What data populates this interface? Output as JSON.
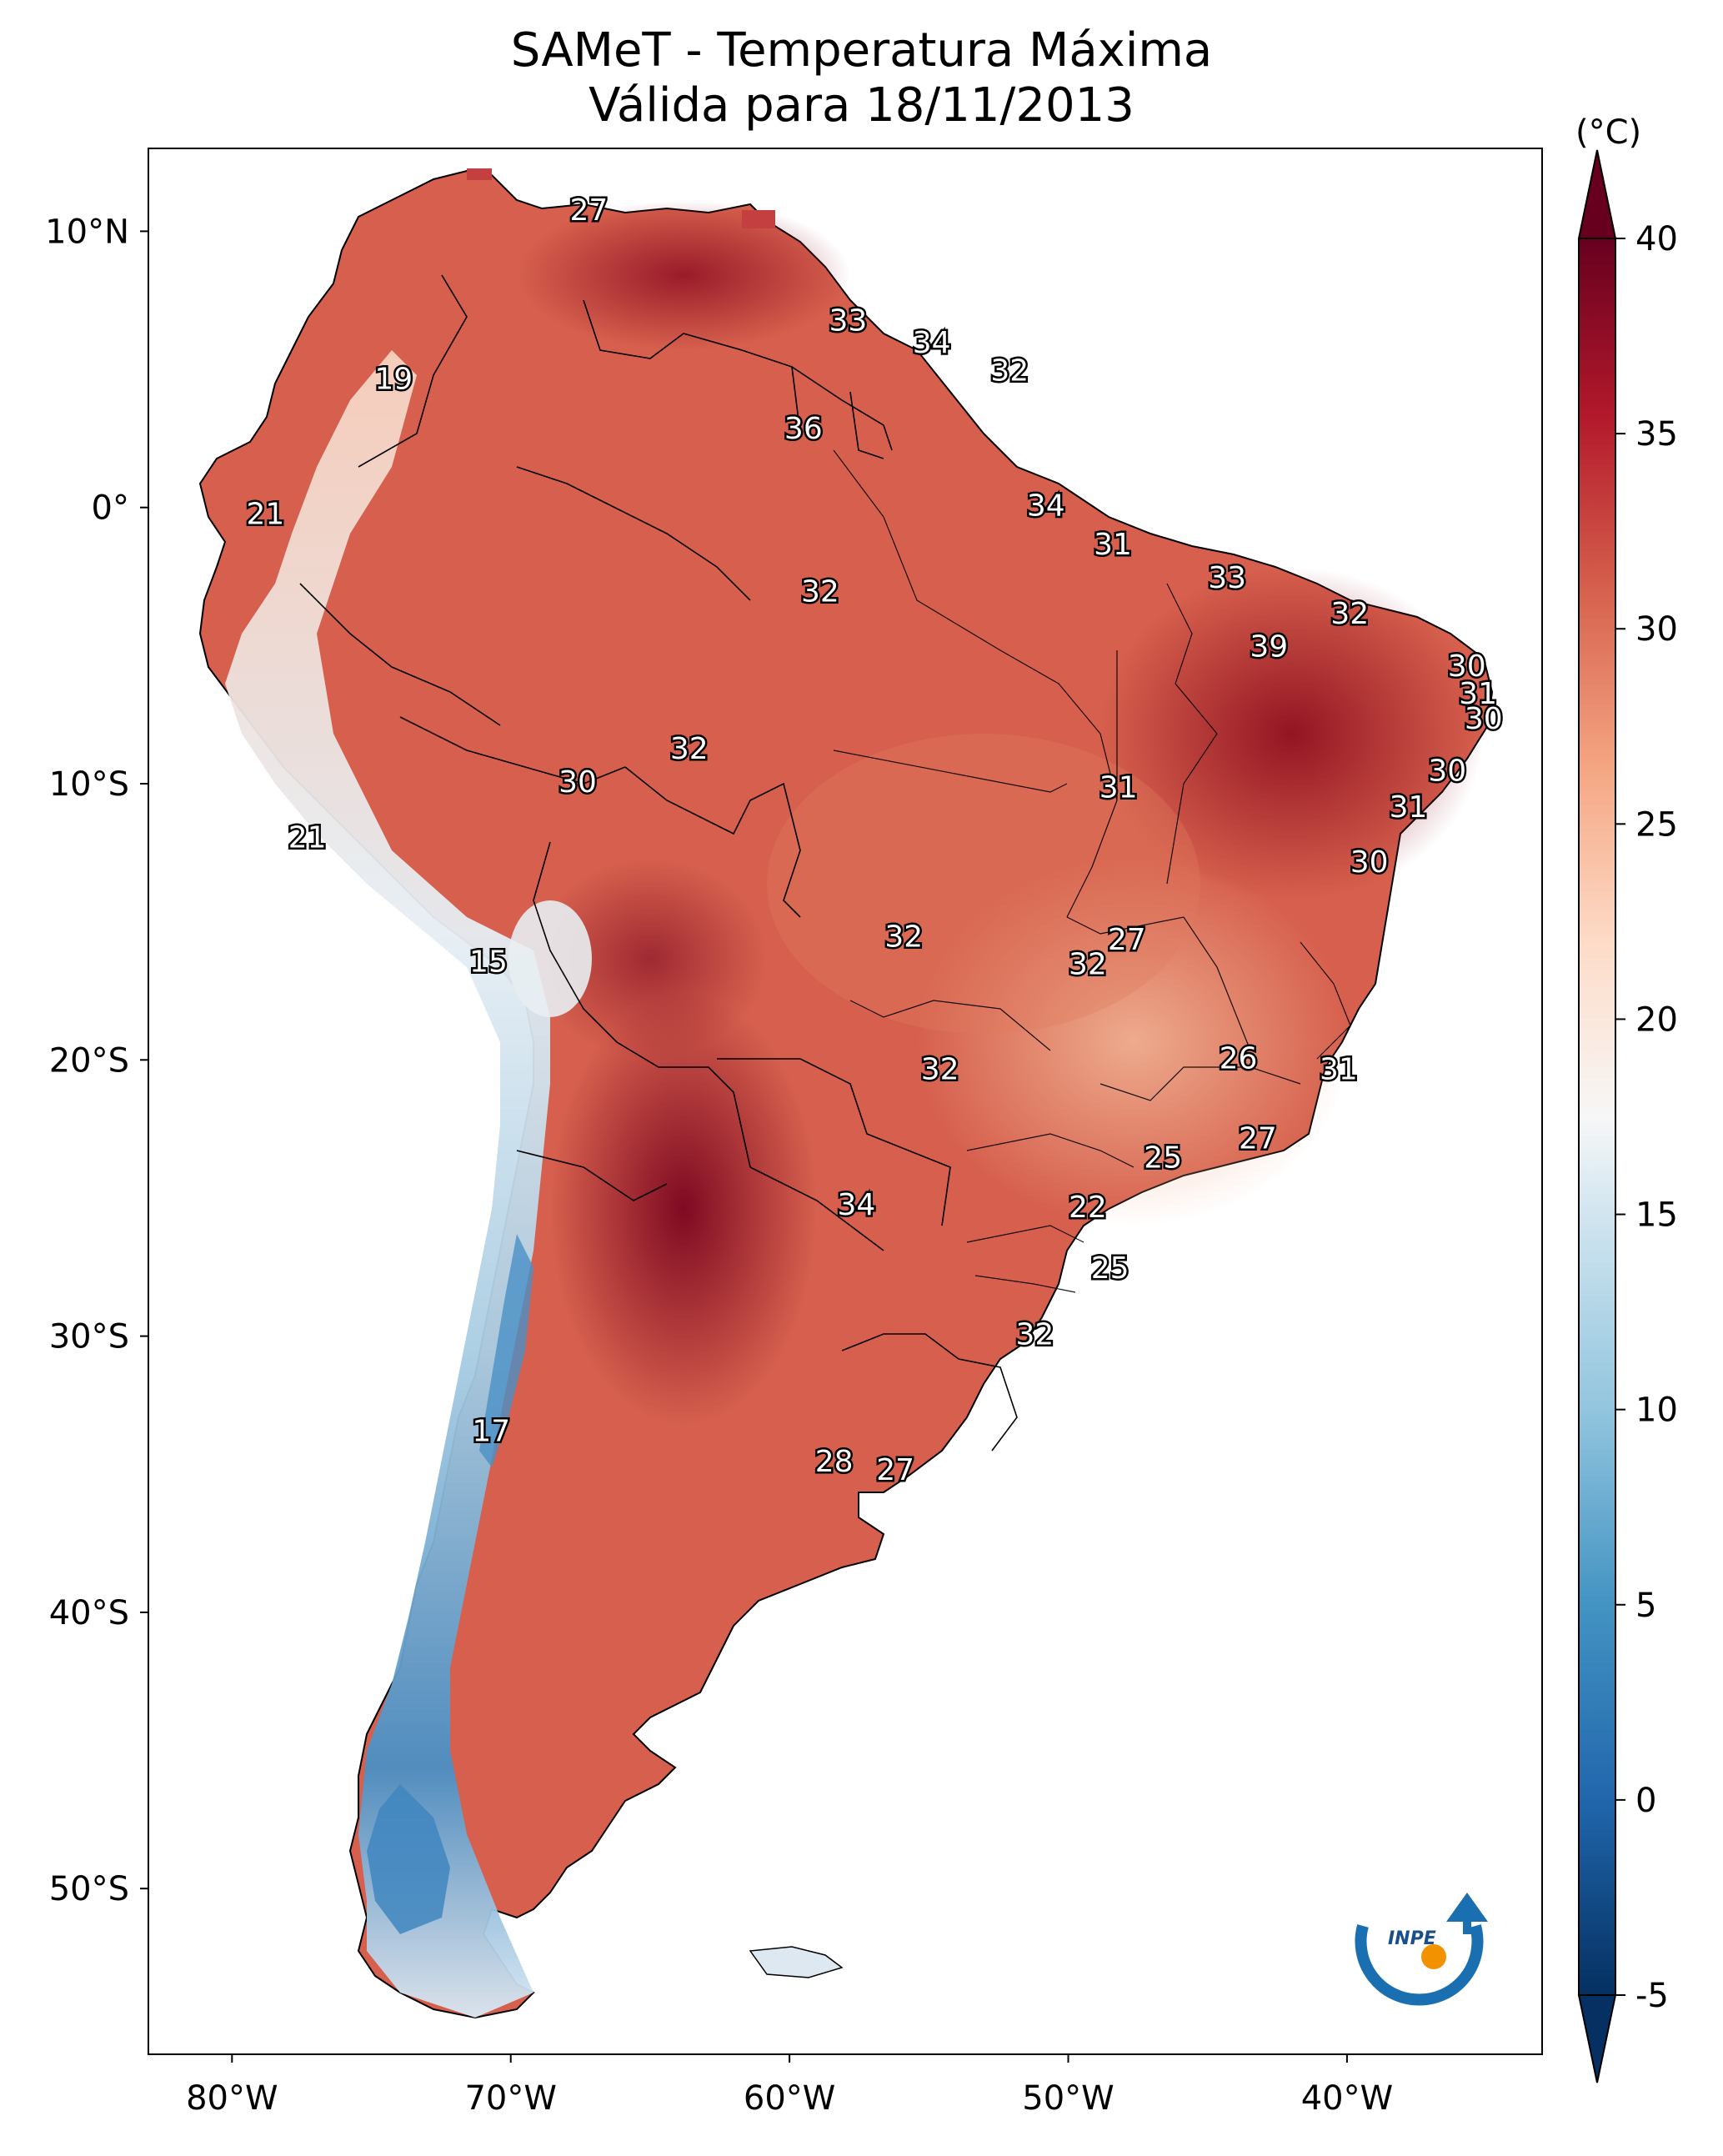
{
  "title": {
    "line1": "SAMeT - Temperatura Máxima",
    "line2": "Válida para 18/11/2013"
  },
  "axes": {
    "lat_ticks": [
      "10°N",
      "0°",
      "10°S",
      "20°S",
      "30°S",
      "40°S",
      "50°S"
    ],
    "lon_ticks": [
      "80°W",
      "70°W",
      "60°W",
      "50°W",
      "40°W"
    ]
  },
  "colorbar": {
    "unit": "(°C)",
    "ticks": [
      "40",
      "35",
      "30",
      "25",
      "20",
      "15",
      "10",
      "5",
      "0",
      "-5"
    ],
    "range": [
      -5,
      40
    ],
    "colormap": [
      "#053061",
      "#2166ac",
      "#4393c3",
      "#92c5de",
      "#d1e5f0",
      "#f7f7f7",
      "#fddbc7",
      "#f4a582",
      "#d6604d",
      "#b2182b",
      "#67001f"
    ]
  },
  "station_labels": [
    {
      "value": "27",
      "lon": -67.2,
      "lat": 10.7
    },
    {
      "value": "19",
      "lon": -74.2,
      "lat": 4.6
    },
    {
      "value": "33",
      "lon": -57.9,
      "lat": 6.7
    },
    {
      "value": "34",
      "lon": -54.9,
      "lat": 5.9
    },
    {
      "value": "32",
      "lon": -52.1,
      "lat": 4.9
    },
    {
      "value": "36",
      "lon": -59.5,
      "lat": 2.8
    },
    {
      "value": "21",
      "lon": -78.8,
      "lat": -0.3
    },
    {
      "value": "34",
      "lon": -50.8,
      "lat": 0.0
    },
    {
      "value": "31",
      "lon": -48.4,
      "lat": -1.4
    },
    {
      "value": "33",
      "lon": -44.3,
      "lat": -2.6
    },
    {
      "value": "32",
      "lon": -58.9,
      "lat": -3.1
    },
    {
      "value": "32",
      "lon": -39.9,
      "lat": -3.9
    },
    {
      "value": "39",
      "lon": -42.8,
      "lat": -5.1
    },
    {
      "value": "30",
      "lon": -35.7,
      "lat": -5.8
    },
    {
      "value": "31",
      "lon": -35.3,
      "lat": -6.8
    },
    {
      "value": "30",
      "lon": -35.1,
      "lat": -7.7
    },
    {
      "value": "32",
      "lon": -63.6,
      "lat": -8.8
    },
    {
      "value": "30",
      "lon": -67.6,
      "lat": -10.0
    },
    {
      "value": "30",
      "lon": -36.4,
      "lat": -9.6
    },
    {
      "value": "31",
      "lon": -48.2,
      "lat": -10.2
    },
    {
      "value": "31",
      "lon": -37.8,
      "lat": -10.9
    },
    {
      "value": "21",
      "lon": -77.3,
      "lat": -12.0
    },
    {
      "value": "30",
      "lon": -39.2,
      "lat": -12.9
    },
    {
      "value": "15",
      "lon": -70.8,
      "lat": -16.5
    },
    {
      "value": "32",
      "lon": -55.9,
      "lat": -15.6
    },
    {
      "value": "27",
      "lon": -47.9,
      "lat": -15.7
    },
    {
      "value": "32",
      "lon": -49.3,
      "lat": -16.6
    },
    {
      "value": "26",
      "lon": -43.9,
      "lat": -20.0
    },
    {
      "value": "31",
      "lon": -40.3,
      "lat": -20.4
    },
    {
      "value": "32",
      "lon": -54.6,
      "lat": -20.4
    },
    {
      "value": "25",
      "lon": -46.6,
      "lat": -23.6
    },
    {
      "value": "27",
      "lon": -43.2,
      "lat": -22.9
    },
    {
      "value": "22",
      "lon": -49.3,
      "lat": -25.4
    },
    {
      "value": "34",
      "lon": -57.6,
      "lat": -25.3
    },
    {
      "value": "25",
      "lon": -48.5,
      "lat": -27.6
    },
    {
      "value": "32",
      "lon": -51.2,
      "lat": -30.0
    },
    {
      "value": "17",
      "lon": -70.7,
      "lat": -33.5
    },
    {
      "value": "28",
      "lon": -58.4,
      "lat": -34.6
    },
    {
      "value": "27",
      "lon": -56.2,
      "lat": -34.9
    }
  ],
  "logo": {
    "text": "INPE"
  }
}
